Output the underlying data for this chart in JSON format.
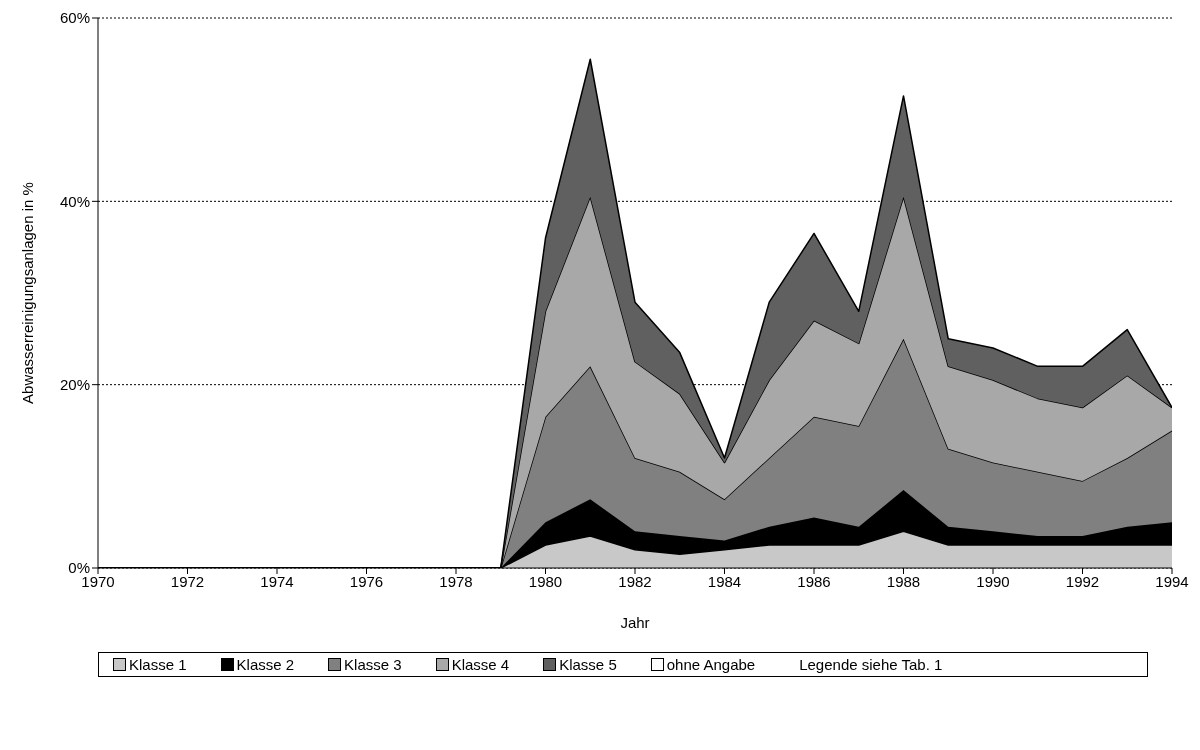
{
  "chart_data": {
    "type": "area",
    "stacked": true,
    "xlabel": "Jahr",
    "ylabel": "Abwasserreinigungsanlagen in %",
    "x": [
      1970,
      1971,
      1972,
      1973,
      1974,
      1975,
      1976,
      1977,
      1978,
      1979,
      1980,
      1981,
      1982,
      1983,
      1984,
      1985,
      1986,
      1987,
      1988,
      1989,
      1990,
      1991,
      1992,
      1993,
      1994
    ],
    "xlim": [
      1970,
      1994
    ],
    "xticks": [
      1970,
      1972,
      1974,
      1976,
      1978,
      1980,
      1982,
      1984,
      1986,
      1988,
      1990,
      1992,
      1994
    ],
    "ylim": [
      0,
      60
    ],
    "yticks": [
      {
        "value": 0,
        "label": "0%"
      },
      {
        "value": 20,
        "label": "20%"
      },
      {
        "value": 40,
        "label": "40%"
      },
      {
        "value": 60,
        "label": "60%"
      }
    ],
    "grid": "y",
    "legend": "bottom",
    "series": [
      {
        "name": "Klasse 1",
        "color": "#c8c8c8",
        "values": [
          0,
          0,
          0,
          0,
          0,
          0,
          0,
          0,
          0,
          0,
          2.5,
          3.5,
          2,
          1.5,
          2,
          2.5,
          2.5,
          2.5,
          4,
          2.5,
          2.5,
          2.5,
          2.5,
          2.5,
          2.5
        ]
      },
      {
        "name": "Klasse 2",
        "color": "#000000",
        "values": [
          0,
          0,
          0,
          0,
          0,
          0,
          0,
          0,
          0,
          0,
          2.5,
          4,
          2,
          2,
          1,
          2,
          3,
          2,
          4.5,
          2,
          1.5,
          1,
          1,
          2,
          2.5
        ]
      },
      {
        "name": "Klasse 3",
        "color": "#808080",
        "values": [
          0,
          0,
          0,
          0,
          0,
          0,
          0,
          0,
          0,
          0,
          11.5,
          14.5,
          8,
          7,
          4.5,
          7.5,
          11,
          11,
          16.5,
          8.5,
          7.5,
          7,
          6,
          7.5,
          10
        ]
      },
      {
        "name": "Klasse 4",
        "color": "#a8a8a8",
        "values": [
          0,
          0,
          0,
          0,
          0,
          0,
          0,
          0,
          0,
          0,
          11.5,
          18.5,
          10.5,
          8.5,
          4,
          8.5,
          10.5,
          9,
          15.5,
          9,
          9,
          8,
          8,
          9,
          2.5
        ]
      },
      {
        "name": "Klasse 5",
        "color": "#606060",
        "values": [
          0,
          0,
          0,
          0,
          0,
          0,
          0,
          0,
          0,
          0,
          8,
          15,
          6.5,
          4.5,
          0.5,
          8.5,
          9.5,
          3.5,
          11,
          3,
          3.5,
          3.5,
          4.5,
          5,
          0
        ]
      },
      {
        "name": "ohne Angabe",
        "color": "#ffffff",
        "values": [
          null,
          null,
          null,
          null,
          null,
          null,
          null,
          null,
          null,
          null,
          null,
          null,
          null,
          null,
          null,
          null,
          null,
          null,
          null,
          null,
          null,
          null,
          null,
          null,
          null
        ]
      }
    ],
    "annotations": [
      "Legende siehe Tab. 1"
    ]
  }
}
